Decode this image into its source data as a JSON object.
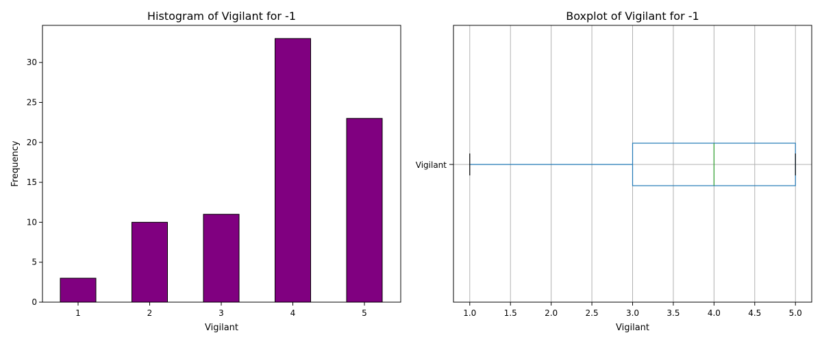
{
  "chart_data": [
    {
      "type": "bar",
      "title": "Histogram of Vigilant for -1",
      "xlabel": "Vigilant",
      "ylabel": "Frequency",
      "categories": [
        "1",
        "2",
        "3",
        "4",
        "5"
      ],
      "values": [
        3,
        10,
        11,
        33,
        23
      ],
      "ylim": [
        0,
        34.65
      ],
      "yticks": [
        0,
        5,
        10,
        15,
        20,
        25,
        30
      ],
      "bar_color": "#800080",
      "edge_color": "#000000",
      "grid": false
    },
    {
      "type": "boxplot",
      "title": "Boxplot of Vigilant for -1",
      "xlabel": "Vigilant",
      "category": "Vigilant",
      "min": 1,
      "q1": 3,
      "median": 4,
      "q3": 5,
      "max": 5,
      "xlim": [
        0.8,
        5.2
      ],
      "xticks": [
        "1.0",
        "1.5",
        "2.0",
        "2.5",
        "3.0",
        "3.5",
        "4.0",
        "4.5",
        "5.0"
      ],
      "box_color": "#1f77b4",
      "median_color": "#2ca02c",
      "cap_color": "#000000",
      "grid": true
    }
  ]
}
